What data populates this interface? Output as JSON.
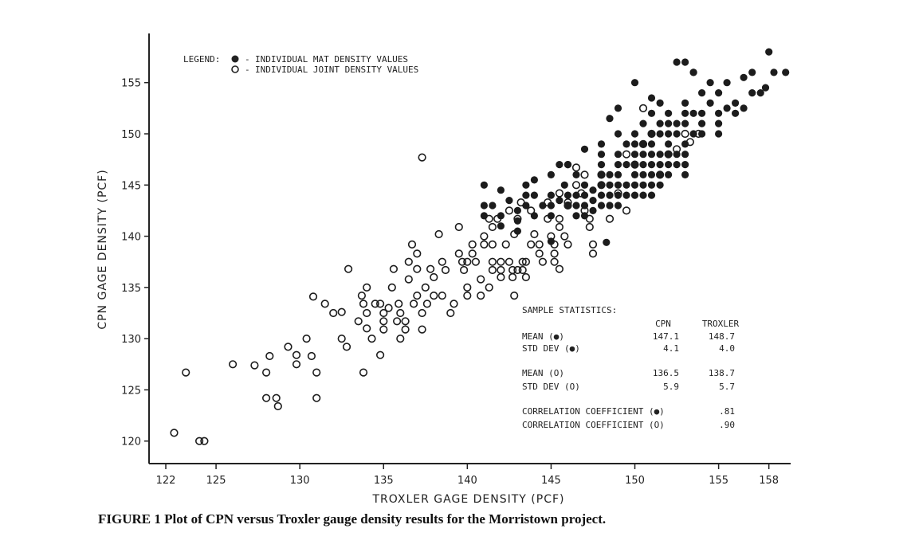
{
  "chart_data": {
    "type": "scatter",
    "title": "",
    "xlabel": "TROXLER GAGE DENSITY (PCF)",
    "ylabel": "CPN GAGE DENSITY (PCF)",
    "xlim": [
      121,
      159.3
    ],
    "ylim": [
      117.8,
      159.8
    ],
    "x_ticks": [
      122,
      125,
      130,
      135,
      140,
      145,
      150,
      155,
      158
    ],
    "y_ticks": [
      120,
      125,
      130,
      135,
      140,
      145,
      150,
      155
    ],
    "grid": false,
    "legend_placement": "top-left",
    "legend_title": "LEGEND:",
    "series": [
      {
        "name": "INDIVIDUAL MAT DENSITY VALUES",
        "marker": "filled",
        "points": [
          [
            141,
            145
          ],
          [
            141,
            143
          ],
          [
            141,
            142
          ],
          [
            141.5,
            143
          ],
          [
            142,
            144.5
          ],
          [
            142,
            142
          ],
          [
            142,
            141
          ],
          [
            142.5,
            143.5
          ],
          [
            143,
            142.5
          ],
          [
            143,
            141.5
          ],
          [
            143.5,
            145
          ],
          [
            143.5,
            144
          ],
          [
            143,
            140.5
          ],
          [
            143.5,
            143
          ],
          [
            144,
            145.5
          ],
          [
            144,
            144
          ],
          [
            144,
            142
          ],
          [
            144.5,
            143
          ],
          [
            145,
            146
          ],
          [
            145,
            144
          ],
          [
            145,
            143
          ],
          [
            145,
            142
          ],
          [
            145.5,
            147
          ],
          [
            145.5,
            143.5
          ],
          [
            145.8,
            145
          ],
          [
            146,
            147
          ],
          [
            146,
            144
          ],
          [
            146,
            143
          ],
          [
            146.5,
            146
          ],
          [
            146.5,
            144
          ],
          [
            146.5,
            143
          ],
          [
            146.5,
            142
          ],
          [
            147,
            145
          ],
          [
            147,
            144
          ],
          [
            147,
            143
          ],
          [
            147,
            142
          ],
          [
            147.5,
            144.5
          ],
          [
            147.5,
            143.5
          ],
          [
            147.5,
            142.5
          ],
          [
            145,
            139.5
          ],
          [
            148,
            149
          ],
          [
            148,
            148
          ],
          [
            148,
            147
          ],
          [
            148,
            146
          ],
          [
            148,
            145
          ],
          [
            148,
            144
          ],
          [
            148,
            143
          ],
          [
            148.5,
            146
          ],
          [
            148.5,
            145
          ],
          [
            148.5,
            144
          ],
          [
            148.5,
            143
          ],
          [
            149,
            150
          ],
          [
            149,
            148
          ],
          [
            149,
            147
          ],
          [
            149,
            146
          ],
          [
            149,
            145
          ],
          [
            149,
            144
          ],
          [
            149,
            143
          ],
          [
            149.5,
            149
          ],
          [
            149.5,
            147
          ],
          [
            149.5,
            145
          ],
          [
            149.5,
            144
          ],
          [
            150,
            150
          ],
          [
            150,
            149
          ],
          [
            150,
            148
          ],
          [
            150,
            147
          ],
          [
            150,
            146
          ],
          [
            150,
            145
          ],
          [
            150,
            144
          ],
          [
            150.5,
            151
          ],
          [
            150.5,
            149
          ],
          [
            150.5,
            148
          ],
          [
            150.5,
            147
          ],
          [
            150.5,
            146
          ],
          [
            150.5,
            145
          ],
          [
            150.5,
            144
          ],
          [
            151,
            152
          ],
          [
            151,
            150
          ],
          [
            151,
            149
          ],
          [
            151,
            148
          ],
          [
            151,
            147
          ],
          [
            151,
            146
          ],
          [
            151,
            145
          ],
          [
            151,
            144
          ],
          [
            151.5,
            153
          ],
          [
            151.5,
            151
          ],
          [
            151.5,
            150
          ],
          [
            151.5,
            148
          ],
          [
            151.5,
            147
          ],
          [
            151.5,
            146
          ],
          [
            151.5,
            145
          ],
          [
            152,
            152
          ],
          [
            152,
            150
          ],
          [
            152,
            149
          ],
          [
            152,
            148
          ],
          [
            152,
            147
          ],
          [
            152,
            146
          ],
          [
            152.5,
            151
          ],
          [
            152.5,
            150
          ],
          [
            152.5,
            148
          ],
          [
            152.5,
            147
          ],
          [
            153,
            153
          ],
          [
            153,
            152
          ],
          [
            153,
            151
          ],
          [
            153,
            149
          ],
          [
            153,
            148
          ],
          [
            153,
            147
          ],
          [
            153,
            146
          ],
          [
            153.5,
            152
          ],
          [
            153.5,
            150
          ],
          [
            154,
            154
          ],
          [
            154,
            152
          ],
          [
            154,
            151
          ],
          [
            154.5,
            155
          ],
          [
            154.5,
            153
          ],
          [
            155,
            154
          ],
          [
            155,
            152
          ],
          [
            155,
            150
          ],
          [
            155.5,
            155
          ],
          [
            156,
            153
          ],
          [
            156,
            152
          ],
          [
            157,
            154
          ],
          [
            153,
            157
          ],
          [
            153.5,
            156
          ],
          [
            157.5,
            154
          ],
          [
            152.5,
            157
          ],
          [
            153.5,
            156
          ],
          [
            156.5,
            155.5
          ],
          [
            158,
            158
          ],
          [
            158.3,
            156
          ],
          [
            157.8,
            154.5
          ],
          [
            159,
            156
          ],
          [
            157,
            156
          ],
          [
            156.5,
            152.5
          ],
          [
            155.5,
            152.5
          ],
          [
            150,
            155
          ],
          [
            151,
            153.5
          ],
          [
            148.3,
            139.4
          ],
          [
            146,
            147
          ],
          [
            147,
            148.5
          ],
          [
            149,
            152.5
          ],
          [
            148.5,
            151.5
          ],
          [
            152,
            151
          ],
          [
            154,
            150
          ],
          [
            155,
            151
          ]
        ]
      },
      {
        "name": "INDIVIDUAL JOINT DENSITY VALUES",
        "marker": "hollow",
        "points": [
          [
            122.5,
            120.8
          ],
          [
            123.2,
            126.7
          ],
          [
            124,
            120
          ],
          [
            124.3,
            120
          ],
          [
            126,
            127.5
          ],
          [
            127.3,
            127.4
          ],
          [
            128,
            124.2
          ],
          [
            128,
            126.7
          ],
          [
            128.2,
            128.3
          ],
          [
            128.6,
            124.2
          ],
          [
            128.7,
            123.4
          ],
          [
            129.3,
            129.2
          ],
          [
            129.8,
            128.4
          ],
          [
            129.8,
            127.5
          ],
          [
            130.4,
            130
          ],
          [
            130.7,
            128.3
          ],
          [
            130.8,
            134.1
          ],
          [
            131,
            126.7
          ],
          [
            131,
            124.2
          ],
          [
            131.5,
            133.4
          ],
          [
            132,
            132.5
          ],
          [
            132.5,
            130
          ],
          [
            132.5,
            132.6
          ],
          [
            132.8,
            129.2
          ],
          [
            132.9,
            136.8
          ],
          [
            133.5,
            131.7
          ],
          [
            133.7,
            134.2
          ],
          [
            133.8,
            126.7
          ],
          [
            133.8,
            133.4
          ],
          [
            134,
            132.5
          ],
          [
            134,
            135
          ],
          [
            134,
            131
          ],
          [
            134.3,
            130
          ],
          [
            134.5,
            133.4
          ],
          [
            134.8,
            128.4
          ],
          [
            134.8,
            133.4
          ],
          [
            135,
            132.5
          ],
          [
            135,
            131.7
          ],
          [
            135,
            130.9
          ],
          [
            135.3,
            133
          ],
          [
            135.5,
            135
          ],
          [
            135.6,
            136.8
          ],
          [
            135.8,
            131.7
          ],
          [
            135.9,
            133.4
          ],
          [
            136,
            130
          ],
          [
            136,
            132.5
          ],
          [
            136.3,
            131.7
          ],
          [
            136.3,
            130.9
          ],
          [
            136.5,
            135.8
          ],
          [
            136.5,
            137.5
          ],
          [
            136.7,
            139.2
          ],
          [
            136.8,
            133.4
          ],
          [
            137,
            138.3
          ],
          [
            137,
            136.8
          ],
          [
            137,
            134.2
          ],
          [
            137.3,
            147.7
          ],
          [
            137.3,
            132.5
          ],
          [
            137.3,
            130.9
          ],
          [
            137.5,
            135
          ],
          [
            137.6,
            133.4
          ],
          [
            137.8,
            136.8
          ],
          [
            138,
            134.2
          ],
          [
            138,
            136
          ],
          [
            138.3,
            140.2
          ],
          [
            138.5,
            137.5
          ],
          [
            138.5,
            134.2
          ],
          [
            138.7,
            136.7
          ],
          [
            139,
            132.5
          ],
          [
            139.2,
            133.4
          ],
          [
            139.5,
            138.3
          ],
          [
            139.5,
            140.9
          ],
          [
            139.7,
            137.5
          ],
          [
            139.8,
            136.7
          ],
          [
            140,
            135
          ],
          [
            140,
            134.2
          ],
          [
            140,
            137.5
          ],
          [
            140.3,
            138.3
          ],
          [
            140.3,
            139.2
          ],
          [
            140.5,
            137.5
          ],
          [
            140.8,
            135.8
          ],
          [
            140.8,
            134.2
          ],
          [
            141,
            140
          ],
          [
            141,
            139.2
          ],
          [
            141.3,
            141.7
          ],
          [
            141.3,
            135
          ],
          [
            141.5,
            136.7
          ],
          [
            141.5,
            137.5
          ],
          [
            141.5,
            139.2
          ],
          [
            141.5,
            140.9
          ],
          [
            141.8,
            141.7
          ],
          [
            142,
            137.5
          ],
          [
            142,
            136.7
          ],
          [
            142,
            136
          ],
          [
            142.3,
            139.2
          ],
          [
            142.5,
            142.5
          ],
          [
            142.5,
            137.5
          ],
          [
            142.7,
            136.7
          ],
          [
            142.7,
            136
          ],
          [
            142.8,
            134.2
          ],
          [
            142.8,
            140.2
          ],
          [
            143,
            141.7
          ],
          [
            143,
            136.7
          ],
          [
            143.2,
            143.3
          ],
          [
            143.3,
            137.5
          ],
          [
            143.3,
            136.7
          ],
          [
            143.5,
            137.5
          ],
          [
            143.5,
            136
          ],
          [
            143.8,
            139.2
          ],
          [
            143.8,
            142.5
          ],
          [
            144,
            140.2
          ],
          [
            144.3,
            139.2
          ],
          [
            144.3,
            138.3
          ],
          [
            144.5,
            137.5
          ],
          [
            144.8,
            143.3
          ],
          [
            144.8,
            141.7
          ],
          [
            145,
            140
          ],
          [
            145.2,
            139.2
          ],
          [
            145.2,
            138.3
          ],
          [
            145.2,
            137.5
          ],
          [
            145.5,
            144.2
          ],
          [
            145.5,
            141.7
          ],
          [
            145.5,
            140.9
          ],
          [
            145.8,
            140
          ],
          [
            146,
            143.3
          ],
          [
            146,
            139.2
          ],
          [
            146.5,
            146.7
          ],
          [
            146.5,
            145
          ],
          [
            146.8,
            144.2
          ],
          [
            147,
            142.5
          ],
          [
            147.3,
            141.7
          ],
          [
            147.3,
            140.9
          ],
          [
            147.5,
            139.2
          ],
          [
            147.5,
            138.3
          ],
          [
            145.5,
            136.8
          ],
          [
            148,
            145
          ],
          [
            148.5,
            141.7
          ],
          [
            149,
            144.2
          ],
          [
            149.5,
            142.5
          ],
          [
            146,
            143
          ],
          [
            147,
            146
          ],
          [
            150,
            147
          ],
          [
            150.5,
            149
          ],
          [
            151,
            150
          ],
          [
            151.5,
            146
          ],
          [
            152,
            148
          ],
          [
            152.5,
            148.5
          ],
          [
            153,
            150
          ],
          [
            153.3,
            149.2
          ],
          [
            153.8,
            150
          ],
          [
            150.5,
            152.5
          ],
          [
            149.5,
            148
          ],
          [
            148,
            146
          ]
        ]
      }
    ]
  },
  "statistics": {
    "title": "SAMPLE STATISTICS:",
    "col_cpn": "CPN",
    "col_troxler": "TROXLER",
    "mean_mat_label": "MEAN (●)",
    "mean_mat_cpn": "147.1",
    "mean_mat_troxler": "148.7",
    "std_mat_label": "STD DEV (●)",
    "std_mat_cpn": "4.1",
    "std_mat_troxler": "4.0",
    "mean_joint_label": "MEAN (O)",
    "mean_joint_cpn": "136.5",
    "mean_joint_troxler": "138.7",
    "std_joint_label": "STD DEV (O)",
    "std_joint_cpn": "5.9",
    "std_joint_troxler": "5.7",
    "corr_mat_label": "CORRELATION COEFFICIENT (●)",
    "corr_mat_value": ".81",
    "corr_joint_label": "CORRELATION COEFFICIENT (O)",
    "corr_joint_value": ".90"
  },
  "caption": "FIGURE 1   Plot of CPN versus Troxler gauge density results for the Morristown project."
}
